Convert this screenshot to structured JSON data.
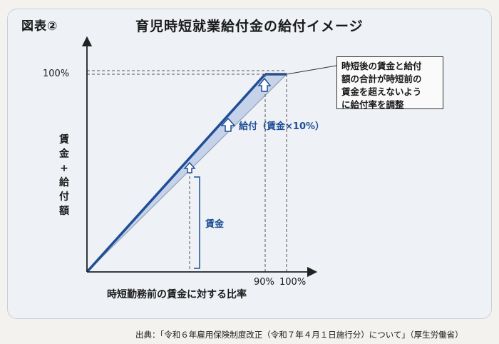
{
  "figure_label": "図表②",
  "title": "育児時短就業給付金の給付イメージ",
  "y_axis": {
    "label_chars": [
      "賃",
      "金",
      "+",
      "給",
      "付",
      "額"
    ],
    "tick_top": "100%"
  },
  "x_axis": {
    "label": "時短勤務前の賃金に対する比率",
    "tick_90": "90%",
    "tick_100": "100%"
  },
  "labels": {
    "wage": "賃金",
    "benefit": "給付（賃金×10%）"
  },
  "callout": {
    "lines": [
      "時短後の賃金と給付",
      "額の合計が時短前の",
      "賃金を超えないよう",
      "に給付率を調整"
    ]
  },
  "footer": "出典：「令和６年雇用保険制度改正（令和７年４月１日施行分）について」（厚生労働省）",
  "colors": {
    "wage_line": "#1f4e96",
    "benefit_band": "#c5d3ea",
    "axis": "#222222"
  }
}
